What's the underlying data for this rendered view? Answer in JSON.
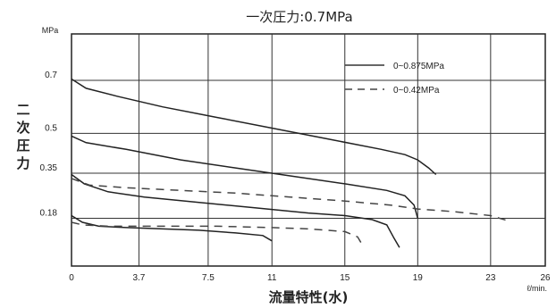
{
  "chart_data": {
    "type": "line",
    "title": "一次圧力:0.7MPa",
    "xlabel": "流量特性(水)",
    "ylabel": "二次圧力",
    "x_unit": "ℓ/min.",
    "y_unit": "MPa",
    "xlim": [
      0,
      26
    ],
    "ylim": [
      0,
      0.875
    ],
    "x_ticks": [
      0,
      3.7,
      7.5,
      11,
      15,
      19,
      23,
      26
    ],
    "x_tick_labels": [
      "0",
      "3.7",
      "7.5",
      "11",
      "15",
      "19",
      "23",
      "26"
    ],
    "y_ticks": [
      0.18,
      0.35,
      0.5,
      0.7
    ],
    "y_tick_labels": [
      "0.18",
      "0.35",
      "0.5",
      "0.7"
    ],
    "grid": true,
    "legend_position": "top-right",
    "legend": [
      {
        "label": "0~0.875MPa",
        "style": "solid"
      },
      {
        "label": "0~0.42MPa",
        "style": "dashed"
      }
    ],
    "series": [
      {
        "style": "solid",
        "color": "#222222",
        "points": [
          [
            0,
            0.705
          ],
          [
            0.8,
            0.67
          ],
          [
            2.5,
            0.64
          ],
          [
            5,
            0.6
          ],
          [
            8,
            0.56
          ],
          [
            11,
            0.52
          ],
          [
            14,
            0.48
          ],
          [
            17,
            0.44
          ],
          [
            18.3,
            0.42
          ],
          [
            19,
            0.4
          ],
          [
            19.6,
            0.37
          ],
          [
            20,
            0.345
          ]
        ]
      },
      {
        "style": "solid",
        "color": "#222222",
        "points": [
          [
            0,
            0.49
          ],
          [
            0.8,
            0.465
          ],
          [
            3,
            0.44
          ],
          [
            6,
            0.4
          ],
          [
            9,
            0.37
          ],
          [
            12,
            0.34
          ],
          [
            15,
            0.31
          ],
          [
            17.3,
            0.285
          ],
          [
            18.3,
            0.265
          ],
          [
            18.8,
            0.23
          ],
          [
            19,
            0.18
          ]
        ]
      },
      {
        "style": "solid",
        "color": "#222222",
        "points": [
          [
            0,
            0.345
          ],
          [
            0.7,
            0.31
          ],
          [
            2,
            0.28
          ],
          [
            4,
            0.26
          ],
          [
            7,
            0.24
          ],
          [
            10,
            0.22
          ],
          [
            13,
            0.2
          ],
          [
            15,
            0.19
          ],
          [
            16.5,
            0.175
          ],
          [
            17.3,
            0.155
          ],
          [
            17.7,
            0.105
          ],
          [
            18,
            0.07
          ]
        ]
      },
      {
        "style": "solid",
        "color": "#222222",
        "points": [
          [
            0,
            0.19
          ],
          [
            0.6,
            0.165
          ],
          [
            1.5,
            0.15
          ],
          [
            3,
            0.145
          ],
          [
            5,
            0.14
          ],
          [
            7,
            0.135
          ],
          [
            9,
            0.125
          ],
          [
            10.5,
            0.115
          ],
          [
            11,
            0.095
          ]
        ]
      },
      {
        "style": "dashed",
        "color": "#444444",
        "points": [
          [
            0,
            0.33
          ],
          [
            1,
            0.305
          ],
          [
            3,
            0.295
          ],
          [
            6,
            0.285
          ],
          [
            9,
            0.275
          ],
          [
            12,
            0.26
          ],
          [
            15,
            0.245
          ],
          [
            17.5,
            0.23
          ],
          [
            19,
            0.215
          ],
          [
            21,
            0.205
          ],
          [
            23,
            0.19
          ],
          [
            24,
            0.17
          ]
        ]
      },
      {
        "style": "dashed",
        "color": "#444444",
        "points": [
          [
            0,
            0.165
          ],
          [
            0.6,
            0.155
          ],
          [
            2,
            0.15
          ],
          [
            5,
            0.15
          ],
          [
            8,
            0.15
          ],
          [
            11,
            0.145
          ],
          [
            13,
            0.14
          ],
          [
            15,
            0.13
          ],
          [
            15.7,
            0.11
          ],
          [
            16,
            0.075
          ]
        ]
      }
    ]
  }
}
